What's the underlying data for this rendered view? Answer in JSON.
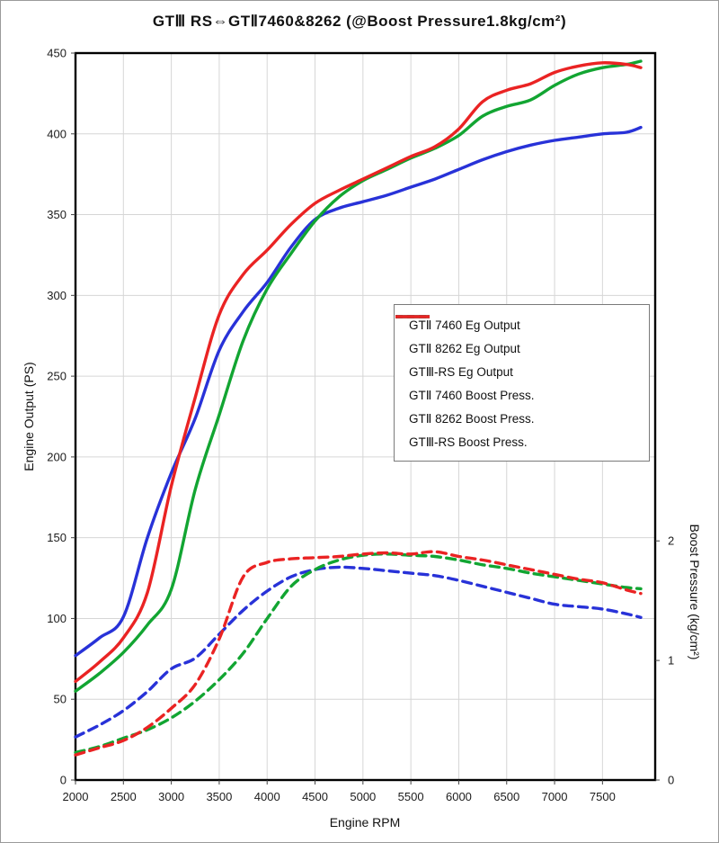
{
  "title": "GTⅢ RS⇔GTⅡ7460&8262 (@Boost Pressure1.8kg/cm²)",
  "axes": {
    "x": {
      "label": "Engine RPM",
      "min": 2000,
      "max": 8050,
      "ticks": [
        2000,
        2500,
        3000,
        3500,
        4000,
        4500,
        5000,
        5500,
        6000,
        6500,
        7000,
        7500
      ]
    },
    "y_left": {
      "label": "Engine Output (PS)",
      "min": 0,
      "max": 450,
      "ticks": [
        0,
        50,
        100,
        150,
        200,
        250,
        300,
        350,
        400,
        450
      ]
    },
    "y_right": {
      "label": "Boost Pressure (kg/cm²)",
      "min": 0,
      "max": 6.08,
      "ticks": [
        0,
        1,
        2
      ]
    }
  },
  "colors": {
    "blue": "#2832d8",
    "green": "#12a532",
    "red": "#ea2323",
    "gridline": "#d6d6d6",
    "spine": "#000000"
  },
  "legend": {
    "items": [
      {
        "id": "gt2-7460-output",
        "label": "GTⅡ 7460 Eg Output",
        "color": "#2832d8",
        "dashed": false
      },
      {
        "id": "gt2-8262-output",
        "label": "GTⅡ 8262 Eg Output",
        "color": "#12a532",
        "dashed": false
      },
      {
        "id": "gt3-rs-output",
        "label": "GTⅢ-RS Eg Output",
        "color": "#ea2323",
        "dashed": false
      },
      {
        "id": "gt2-7460-boost",
        "label": "GTⅡ 7460 Boost Press.",
        "color": "#2832d8",
        "dashed": true
      },
      {
        "id": "gt2-8262-boost",
        "label": "GTⅡ 8262 Boost Press.",
        "color": "#12a532",
        "dashed": true
      },
      {
        "id": "gt3-rs-boost",
        "label": "GTⅢ-RS Boost Press.",
        "color": "#ea2323",
        "dashed": true
      }
    ]
  },
  "chart_data": {
    "type": "line",
    "title": "GTⅢ RS⇔GTⅡ7460&8262 (@Boost Pressure1.8kg/cm²)",
    "xlabel": "Engine RPM",
    "ylabel_left": "Engine Output (PS)",
    "ylabel_right": "Boost Pressure (kg/cm²)",
    "x_range": [
      2000,
      8050
    ],
    "y_left_range": [
      0,
      450
    ],
    "y_right_range": [
      0,
      6.08
    ],
    "grid": true,
    "legend_position": "center-right",
    "x": [
      2000,
      2250,
      2500,
      2750,
      3000,
      3250,
      3500,
      3750,
      4000,
      4250,
      4500,
      4750,
      5000,
      5250,
      5500,
      5750,
      6000,
      6250,
      6500,
      6750,
      7000,
      7250,
      7500,
      7750,
      7900
    ],
    "series": [
      {
        "id": "gt2-7460-output",
        "name": "GTⅡ 7460 Eg Output",
        "axis": "left",
        "color": "#2832d8",
        "dashed": false,
        "values": [
          77,
          88,
          101,
          150,
          190,
          224,
          266,
          290,
          308,
          330,
          347,
          354,
          358,
          362,
          367,
          372,
          378,
          384,
          389,
          393,
          396,
          398,
          400,
          401,
          404
        ]
      },
      {
        "id": "gt2-8262-output",
        "name": "GTⅡ 8262 Eg Output",
        "axis": "left",
        "color": "#12a532",
        "dashed": false,
        "values": [
          55,
          66,
          79,
          96,
          118,
          180,
          226,
          272,
          304,
          326,
          346,
          361,
          371,
          378,
          385,
          391,
          399,
          411,
          417,
          421,
          430,
          437,
          441,
          443,
          445
        ]
      },
      {
        "id": "gt3-rs-output",
        "name": "GTⅢ-RS Eg Output",
        "axis": "left",
        "color": "#ea2323",
        "dashed": false,
        "values": [
          61,
          73,
          88,
          116,
          182,
          237,
          288,
          313,
          328,
          344,
          357,
          365,
          372,
          379,
          386,
          392,
          403,
          420,
          427,
          431,
          438,
          442,
          444,
          443,
          441
        ]
      },
      {
        "id": "gt2-7460-boost",
        "name": "GTⅡ 7460 Boost Press.",
        "axis": "right",
        "color": "#2832d8",
        "dashed": true,
        "values": [
          0.36,
          0.46,
          0.58,
          0.74,
          0.93,
          1.02,
          1.22,
          1.42,
          1.58,
          1.7,
          1.76,
          1.78,
          1.77,
          1.75,
          1.73,
          1.71,
          1.67,
          1.62,
          1.57,
          1.52,
          1.47,
          1.45,
          1.43,
          1.39,
          1.36
        ]
      },
      {
        "id": "gt2-8262-boost",
        "name": "GTⅡ 8262 Boost Press.",
        "axis": "right",
        "color": "#12a532",
        "dashed": true,
        "values": [
          0.23,
          0.28,
          0.35,
          0.42,
          0.52,
          0.66,
          0.84,
          1.06,
          1.35,
          1.62,
          1.76,
          1.84,
          1.88,
          1.89,
          1.88,
          1.87,
          1.84,
          1.8,
          1.77,
          1.73,
          1.7,
          1.67,
          1.64,
          1.61,
          1.6
        ]
      },
      {
        "id": "gt3-rs-boost",
        "name": "GTⅢ-RS Boost Press.",
        "axis": "right",
        "color": "#ea2323",
        "dashed": true,
        "values": [
          0.21,
          0.27,
          0.33,
          0.44,
          0.6,
          0.8,
          1.18,
          1.7,
          1.82,
          1.85,
          1.86,
          1.87,
          1.89,
          1.9,
          1.89,
          1.91,
          1.87,
          1.84,
          1.8,
          1.76,
          1.72,
          1.68,
          1.65,
          1.59,
          1.56
        ]
      }
    ]
  }
}
